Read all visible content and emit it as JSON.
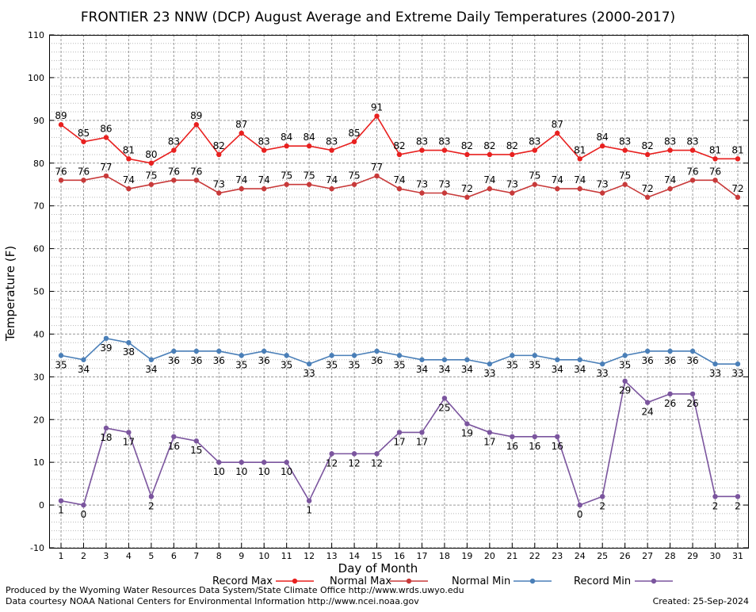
{
  "chart_data": {
    "type": "line",
    "title": "FRONTIER 23 NNW (DCP) August Average and Extreme Daily Temperatures (2000-2017)",
    "xlabel": "Day of Month",
    "ylabel": "Temperature (F)",
    "ylim": [
      -10,
      110
    ],
    "xlim": [
      1,
      31
    ],
    "yticks": [
      -10,
      0,
      10,
      20,
      30,
      40,
      50,
      60,
      70,
      80,
      90,
      100,
      110
    ],
    "grid": true,
    "legend_placement": "bottom",
    "x": [
      1,
      2,
      3,
      4,
      5,
      6,
      7,
      8,
      9,
      10,
      11,
      12,
      13,
      14,
      15,
      16,
      17,
      18,
      19,
      20,
      21,
      22,
      23,
      24,
      25,
      26,
      27,
      28,
      29,
      30,
      31
    ],
    "series": [
      {
        "name": "Record Max",
        "color": "#e8201f",
        "label_side": "above",
        "values": [
          89,
          85,
          86,
          81,
          80,
          83,
          89,
          82,
          87,
          83,
          84,
          84,
          83,
          85,
          91,
          82,
          83,
          83,
          82,
          82,
          82,
          83,
          87,
          81,
          84,
          83,
          82,
          83,
          83,
          81,
          81
        ]
      },
      {
        "name": "Normal Max",
        "color": "#c83a3a",
        "label_side": "above",
        "values": [
          76,
          76,
          77,
          74,
          75,
          76,
          76,
          73,
          74,
          74,
          75,
          75,
          74,
          75,
          77,
          74,
          73,
          73,
          72,
          74,
          73,
          75,
          74,
          74,
          73,
          75,
          72,
          74,
          76,
          76,
          72
        ]
      },
      {
        "name": "Normal Min",
        "color": "#4a7fb8",
        "label_side": "below",
        "values": [
          35,
          34,
          39,
          38,
          34,
          36,
          36,
          36,
          35,
          36,
          35,
          33,
          35,
          35,
          36,
          35,
          34,
          34,
          34,
          33,
          35,
          35,
          34,
          34,
          33,
          35,
          36,
          36,
          36,
          33,
          33
        ]
      },
      {
        "name": "Record Min",
        "color": "#7b559e",
        "label_side": "below",
        "values": [
          1,
          0,
          18,
          17,
          2,
          16,
          15,
          10,
          10,
          10,
          10,
          1,
          12,
          12,
          12,
          17,
          17,
          25,
          19,
          17,
          16,
          16,
          16,
          0,
          2,
          29,
          24,
          26,
          26,
          2,
          2
        ]
      }
    ]
  },
  "footer": {
    "produced_by": "Produced by the Wyoming Water Resources Data System/State Climate Office http://www.wrds.uwyo.edu",
    "data_courtesy": "Data courtesy NOAA National Centers for Environmental Information http://www.ncei.noaa.gov",
    "created": "Created: 25-Sep-2024"
  }
}
